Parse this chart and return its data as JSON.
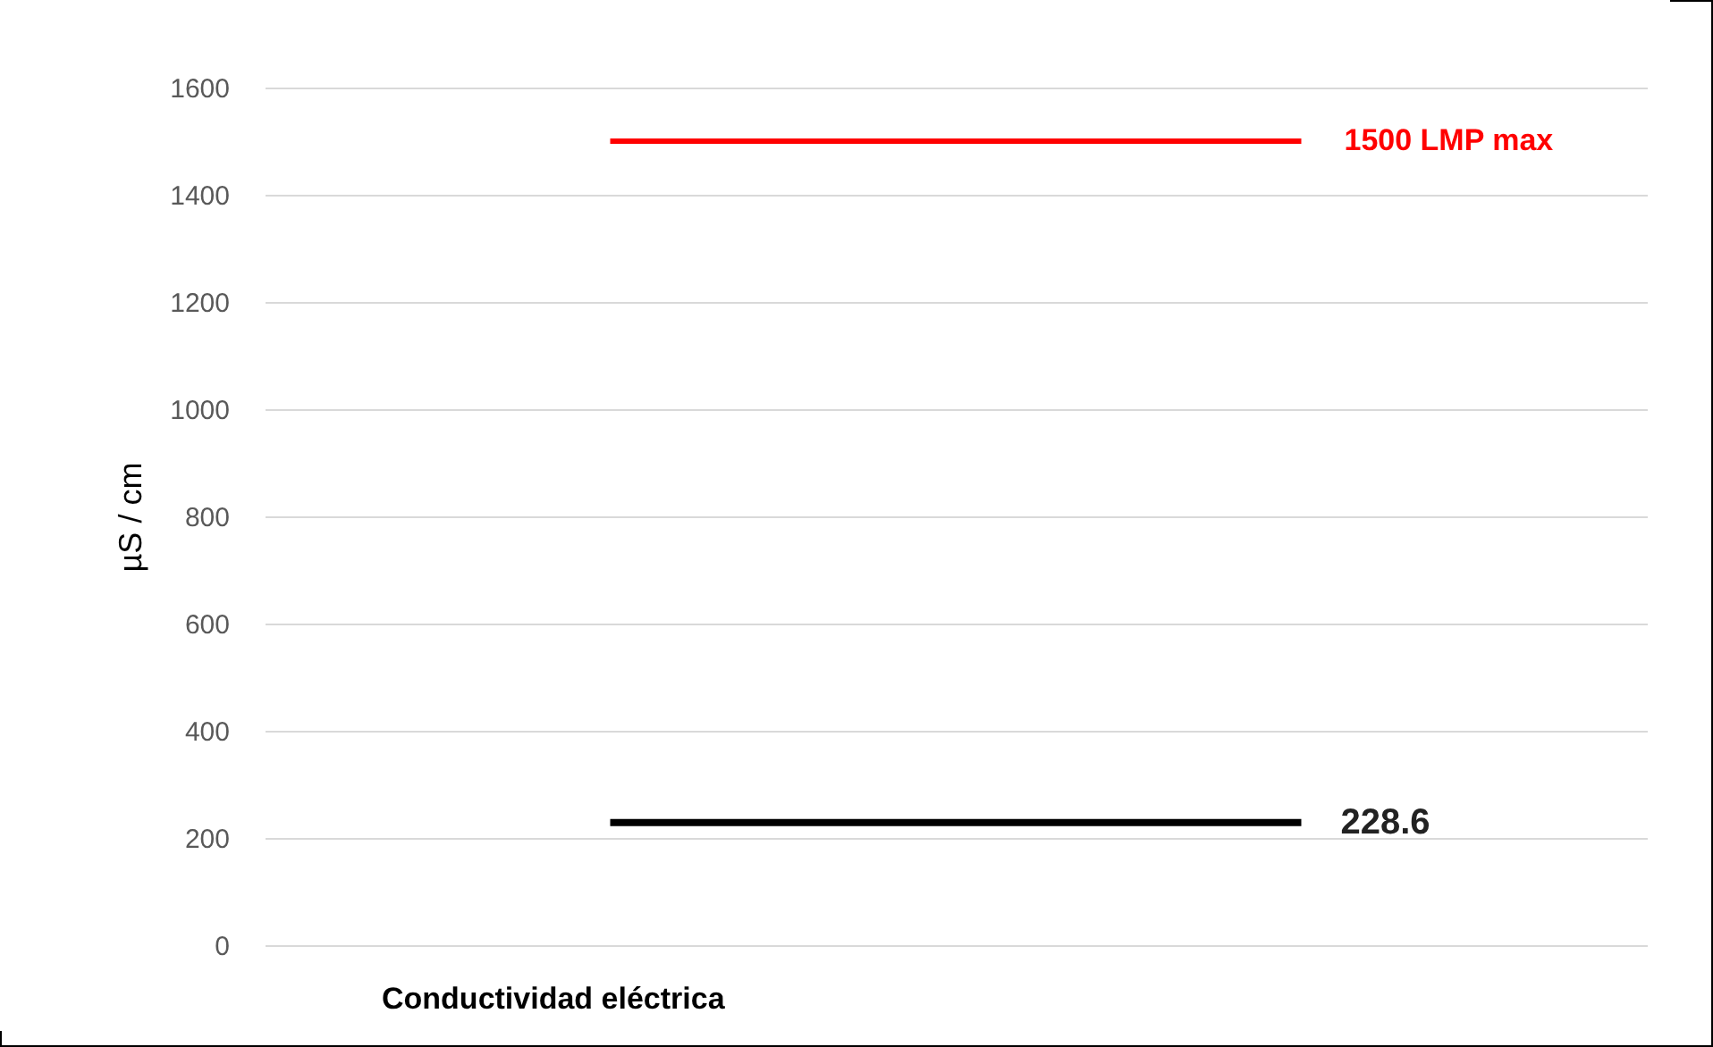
{
  "chart_data": {
    "type": "line",
    "ylabel": "µS / cm",
    "xlabel": "Conductividad eléctrica",
    "categories": [
      null,
      null
    ],
    "series": [
      {
        "color": "#000000",
        "values": [
          228.6,
          228.6
        ],
        "value_labels": [
          null,
          "228.6"
        ]
      }
    ],
    "ref_lines": [
      {
        "axis": "y",
        "value": 1500,
        "label": "1500  LMP max",
        "color": "#ff0000"
      }
    ],
    "tick_labels": "y",
    "ylim": [
      0,
      1600
    ],
    "yticks": [
      0,
      200,
      400,
      600,
      800,
      1000,
      1200,
      1400,
      1600
    ],
    "grid": "y"
  }
}
